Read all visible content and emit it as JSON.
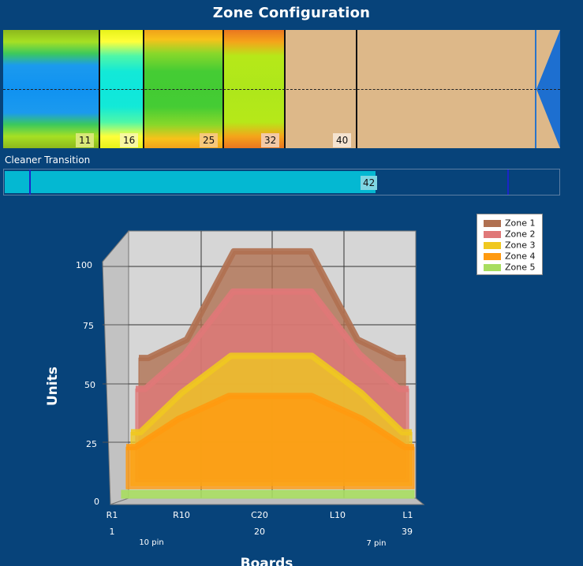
{
  "title": "Zone Configuration",
  "zone_bar": {
    "labels": [
      "11",
      "16",
      "25",
      "32",
      "40"
    ]
  },
  "transition": {
    "label": "Cleaner Transition",
    "value": "42"
  },
  "chart_data": {
    "type": "area",
    "title": "",
    "ylabel": "Units",
    "xlabel": "Boards",
    "ylim": [
      0,
      100
    ],
    "yticks": [
      "100",
      "75",
      "50",
      "25",
      "0"
    ],
    "xticks": [
      "R1",
      "R10",
      "C20",
      "L10",
      "L1"
    ],
    "board_labels": [
      "1",
      "20",
      "39"
    ],
    "pin_labels": [
      "10 pin",
      "7 pin"
    ],
    "x": [
      1,
      10,
      20,
      30,
      39
    ],
    "series": [
      {
        "name": "Zone 1",
        "color": "#b07050",
        "values": [
          52,
          60,
          98,
          60,
          52
        ]
      },
      {
        "name": "Zone 2",
        "color": "#e07878",
        "values": [
          40,
          55,
          82,
          55,
          40
        ]
      },
      {
        "name": "Zone 3",
        "color": "#f0c820",
        "values": [
          23,
          40,
          56,
          40,
          23
        ]
      },
      {
        "name": "Zone 4",
        "color": "#ff9a10",
        "values": [
          18,
          30,
          40,
          30,
          18
        ]
      },
      {
        "name": "Zone 5",
        "color": "#a8dd60",
        "values": [
          2,
          2,
          2,
          2,
          2
        ]
      }
    ],
    "legend_placement": "top-right",
    "grid": true
  }
}
